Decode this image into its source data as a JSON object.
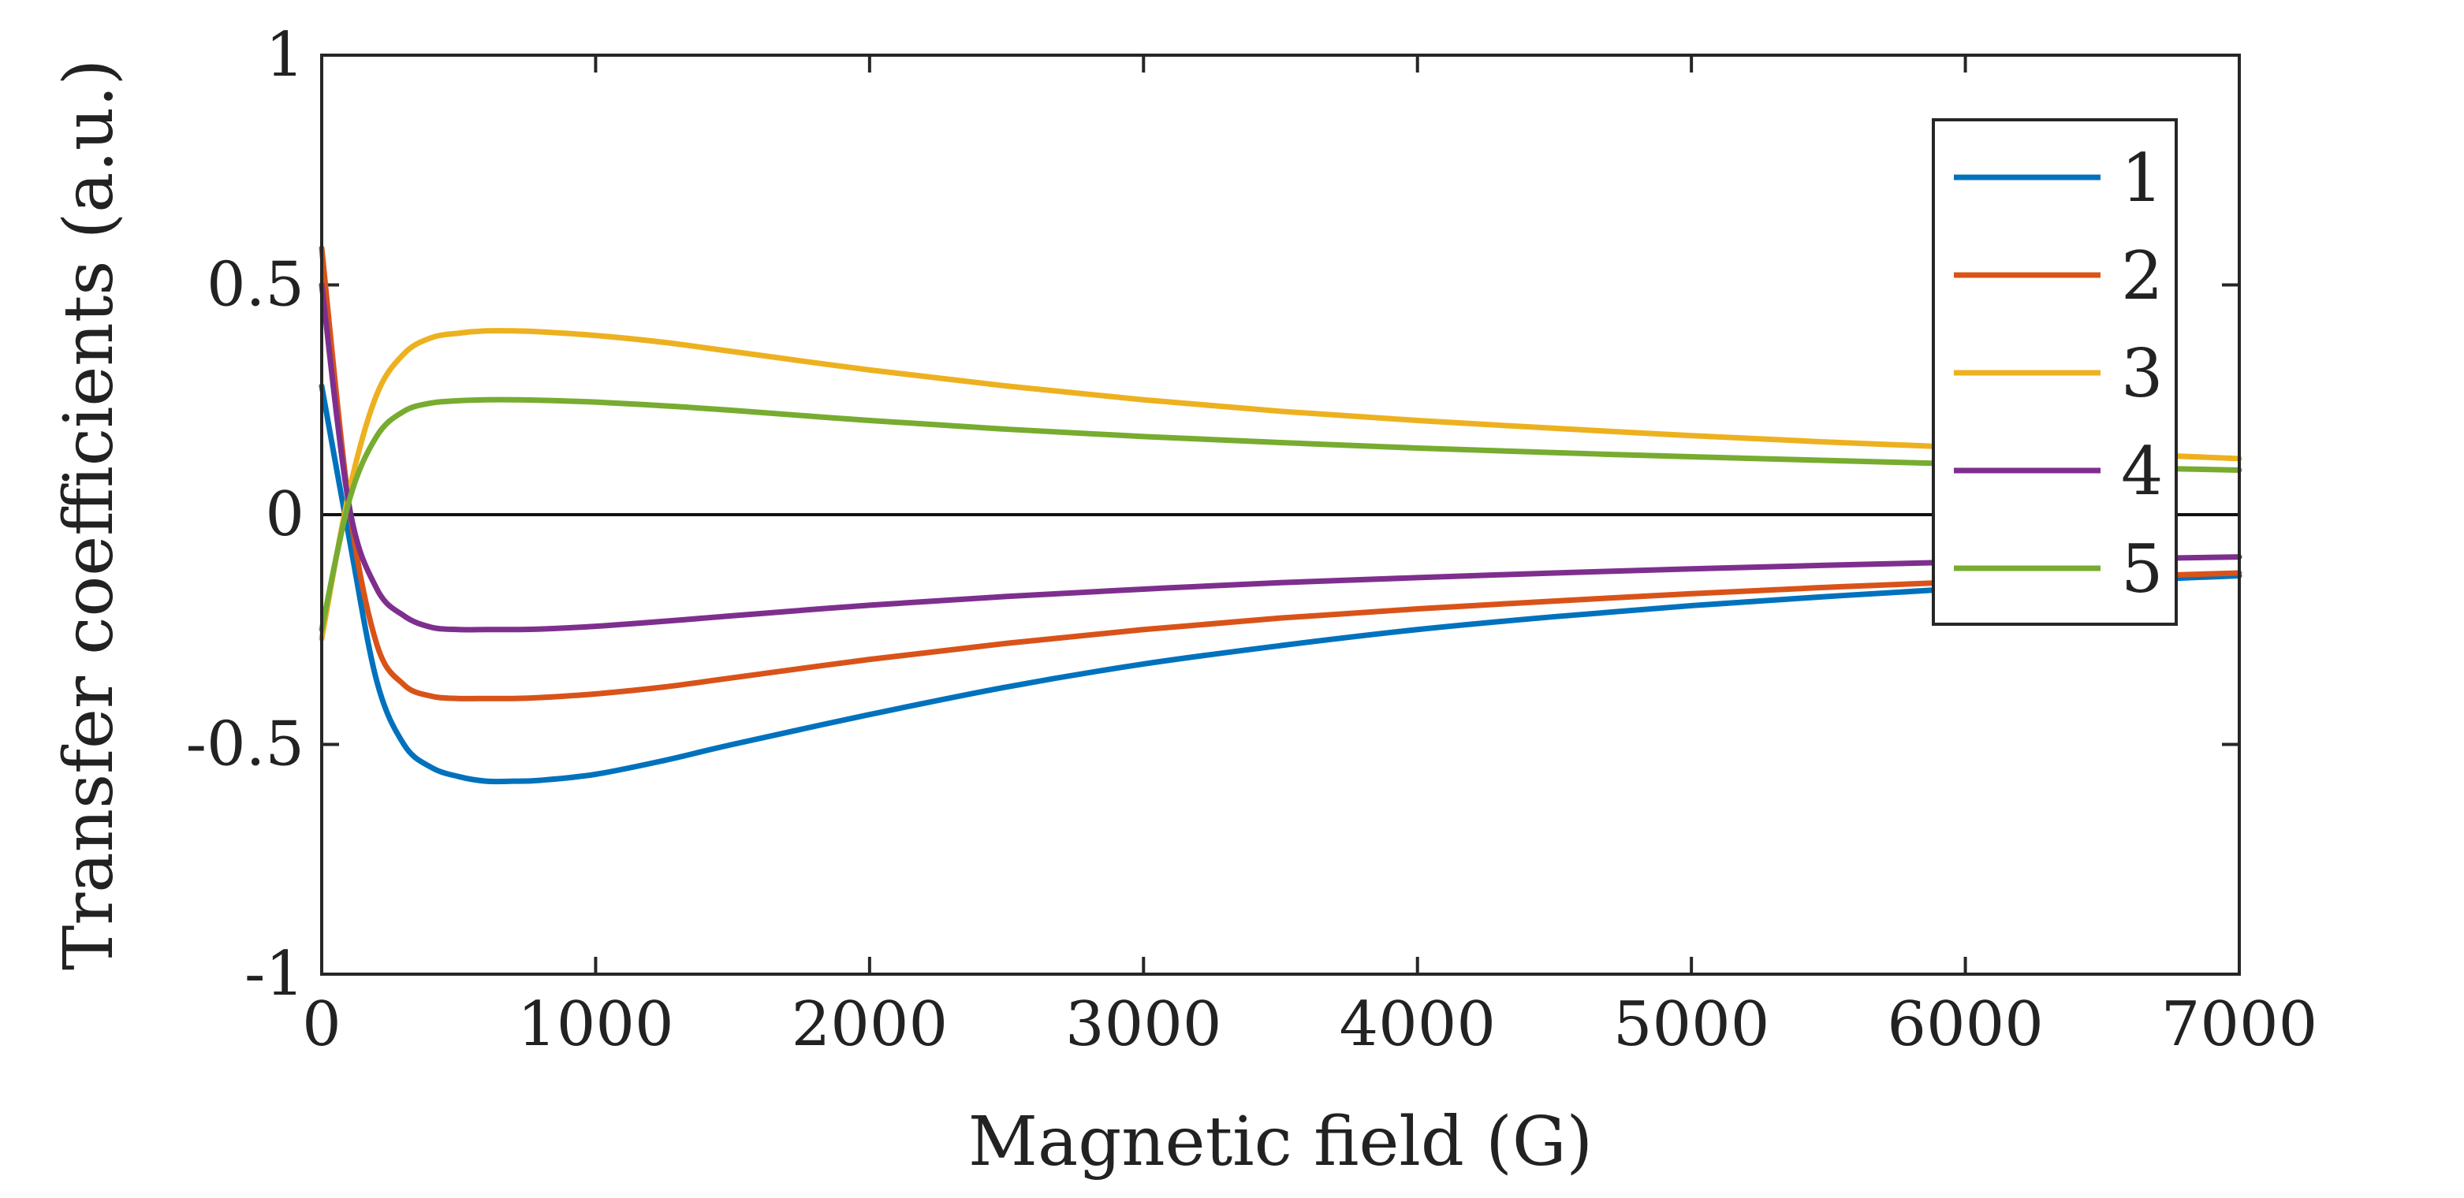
{
  "chart_data": {
    "type": "line",
    "title": "",
    "xlabel": "Magnetic field (G)",
    "ylabel": "Transfer coefficients (a.u.)",
    "xlim": [
      0,
      7000
    ],
    "ylim": [
      -1,
      1
    ],
    "xticks": [
      0,
      1000,
      2000,
      3000,
      4000,
      5000,
      6000,
      7000
    ],
    "yticks": [
      -1,
      -0.5,
      0,
      0.5,
      1
    ],
    "xtick_labels": [
      "0",
      "1000",
      "2000",
      "3000",
      "4000",
      "5000",
      "6000",
      "7000"
    ],
    "ytick_labels": [
      "-1",
      "-0.5",
      "0",
      "0.5",
      "1"
    ],
    "grid": false,
    "zero_line": true,
    "legend_position": "top-right",
    "x": [
      0,
      100,
      200,
      300,
      400,
      500,
      600,
      700,
      800,
      1000,
      1250,
      1500,
      2000,
      2500,
      3000,
      3500,
      4000,
      4500,
      5000,
      5500,
      6000,
      6500,
      7000
    ],
    "series": [
      {
        "name": "1",
        "color": "#0072BD",
        "values": [
          0.28,
          -0.05,
          -0.36,
          -0.5,
          -0.55,
          -0.57,
          -0.58,
          -0.58,
          -0.578,
          -0.565,
          -0.535,
          -0.5,
          -0.435,
          -0.375,
          -0.325,
          -0.285,
          -0.25,
          -0.222,
          -0.198,
          -0.178,
          -0.16,
          -0.145,
          -0.133
        ]
      },
      {
        "name": "2",
        "color": "#D95319",
        "values": [
          0.58,
          0.02,
          -0.28,
          -0.37,
          -0.395,
          -0.4,
          -0.4,
          -0.4,
          -0.398,
          -0.39,
          -0.375,
          -0.355,
          -0.315,
          -0.28,
          -0.25,
          -0.225,
          -0.205,
          -0.188,
          -0.172,
          -0.158,
          -0.146,
          -0.136,
          -0.127
        ]
      },
      {
        "name": "3",
        "color": "#EDB120",
        "values": [
          -0.27,
          0.05,
          0.26,
          0.35,
          0.385,
          0.395,
          0.4,
          0.4,
          0.398,
          0.39,
          0.375,
          0.355,
          0.315,
          0.28,
          0.25,
          0.225,
          0.205,
          0.188,
          0.172,
          0.158,
          0.146,
          0.134,
          0.122
        ]
      },
      {
        "name": "4",
        "color": "#7E2F8E",
        "values": [
          0.5,
          0.02,
          -0.16,
          -0.22,
          -0.245,
          -0.25,
          -0.25,
          -0.25,
          -0.249,
          -0.243,
          -0.232,
          -0.22,
          -0.197,
          -0.178,
          -0.162,
          -0.148,
          -0.137,
          -0.127,
          -0.118,
          -0.11,
          -0.103,
          -0.097,
          -0.092
        ]
      },
      {
        "name": "5",
        "color": "#77AC30",
        "values": [
          -0.25,
          0.03,
          0.17,
          0.225,
          0.243,
          0.248,
          0.25,
          0.25,
          0.249,
          0.245,
          0.237,
          0.227,
          0.205,
          0.186,
          0.17,
          0.157,
          0.145,
          0.135,
          0.126,
          0.118,
          0.11,
          0.103,
          0.097
        ]
      }
    ]
  }
}
